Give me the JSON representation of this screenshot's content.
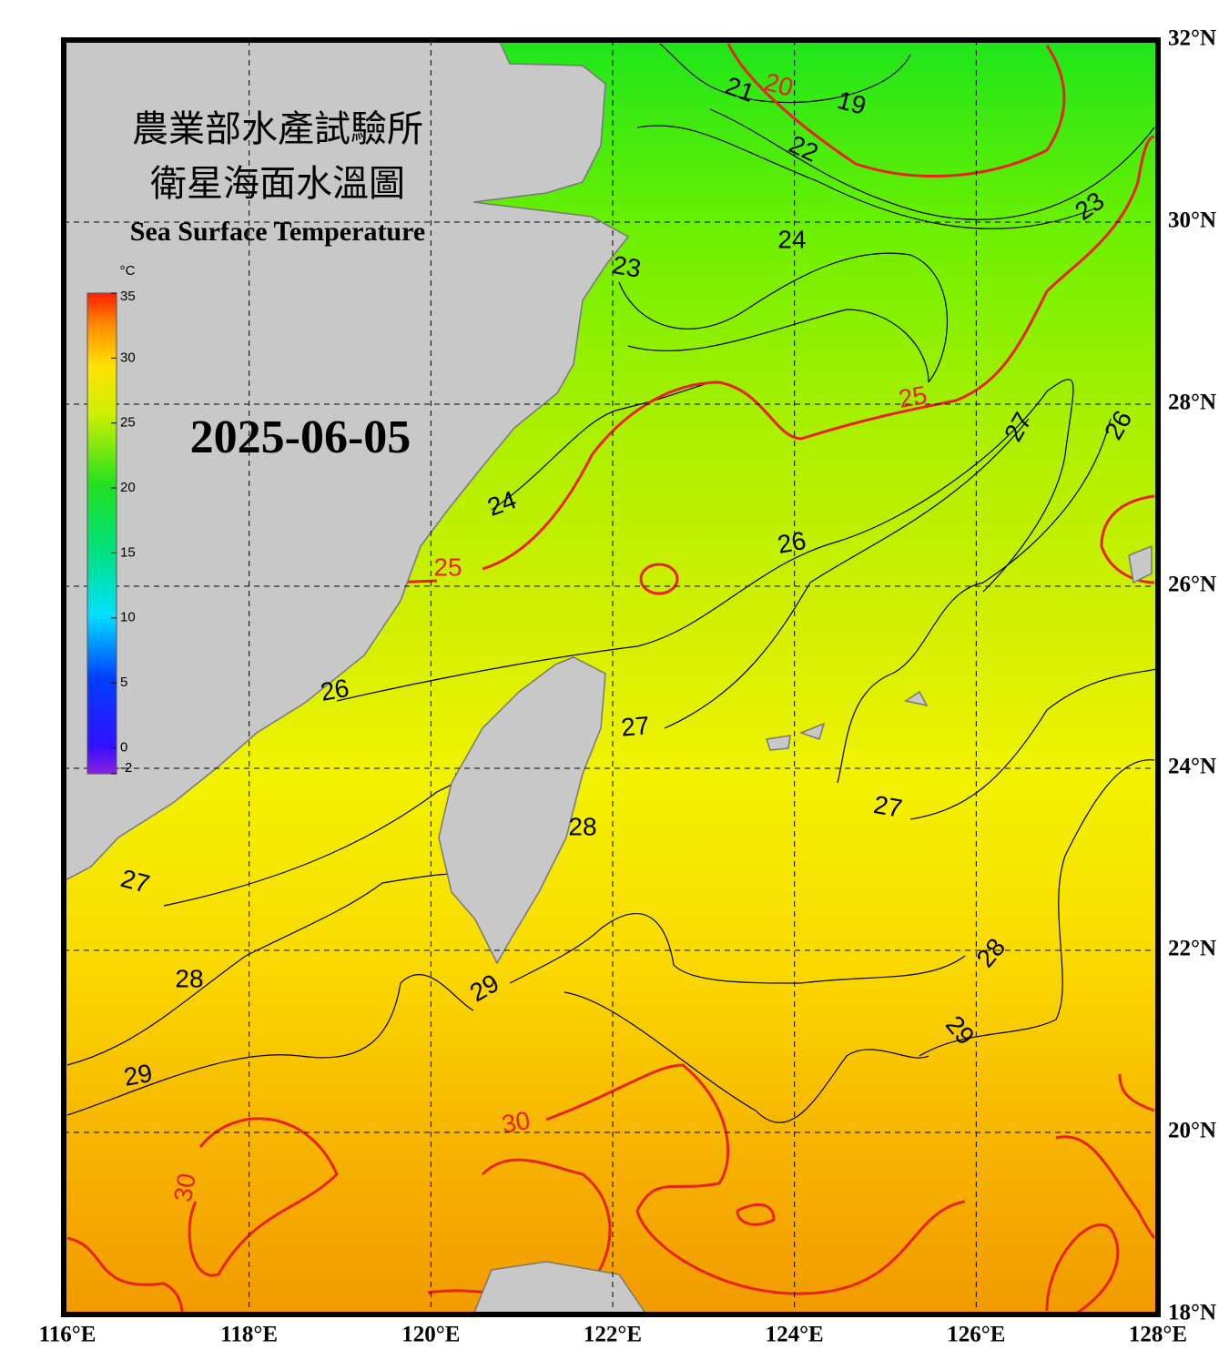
{
  "header": {
    "title_lines": [
      "農業部水產試驗所",
      "衛星海面水溫圖"
    ],
    "subtitle": "Sea Surface Temperature",
    "date": "2025-06-05"
  },
  "colorbar": {
    "unit": "°C",
    "range": [
      -2,
      35
    ],
    "ticks": [
      35,
      30,
      25,
      20,
      15,
      10,
      5,
      0,
      -2
    ]
  },
  "longitude_labels": [
    {
      "value": 116,
      "label": "116°E"
    },
    {
      "value": 118,
      "label": "118°E"
    },
    {
      "value": 120,
      "label": "120°E"
    },
    {
      "value": 122,
      "label": "122°E"
    },
    {
      "value": 124,
      "label": "124°E"
    },
    {
      "value": 126,
      "label": "126°E"
    },
    {
      "value": 128,
      "label": "128°E"
    }
  ],
  "latitude_labels": [
    {
      "value": 32,
      "label": "32°N"
    },
    {
      "value": 30,
      "label": "30°N"
    },
    {
      "value": 28,
      "label": "28°N"
    },
    {
      "value": 26,
      "label": "26°N"
    },
    {
      "value": 24,
      "label": "24°N"
    },
    {
      "value": 22,
      "label": "22°N"
    },
    {
      "value": 20,
      "label": "20°N"
    },
    {
      "value": 18,
      "label": "18°N"
    }
  ],
  "contour_labels": [
    {
      "value": 20,
      "color": "#e8231e"
    },
    {
      "value": 19,
      "color": "#000000"
    },
    {
      "value": 21,
      "color": "#000000"
    },
    {
      "value": 22,
      "color": "#000000"
    },
    {
      "value": 23,
      "color": "#000000"
    },
    {
      "value": 24,
      "color": "#000000"
    },
    {
      "value": 23,
      "color": "#000000"
    },
    {
      "value": 25,
      "color": "#e8231e"
    },
    {
      "value": 27,
      "color": "#000000"
    },
    {
      "value": 26,
      "color": "#000000"
    },
    {
      "value": 24,
      "color": "#000000"
    },
    {
      "value": 25,
      "color": "#e8231e"
    },
    {
      "value": 26,
      "color": "#000000"
    },
    {
      "value": 26,
      "color": "#000000"
    },
    {
      "value": 27,
      "color": "#000000"
    },
    {
      "value": 27,
      "color": "#000000"
    },
    {
      "value": 28,
      "color": "#000000"
    },
    {
      "value": 27,
      "color": "#000000"
    },
    {
      "value": 28,
      "color": "#000000"
    },
    {
      "value": 28,
      "color": "#000000"
    },
    {
      "value": 29,
      "color": "#000000"
    },
    {
      "value": 29,
      "color": "#000000"
    },
    {
      "value": 29,
      "color": "#000000"
    },
    {
      "value": 30,
      "color": "#e8231e"
    },
    {
      "value": 30,
      "color": "#e8231e"
    }
  ]
}
